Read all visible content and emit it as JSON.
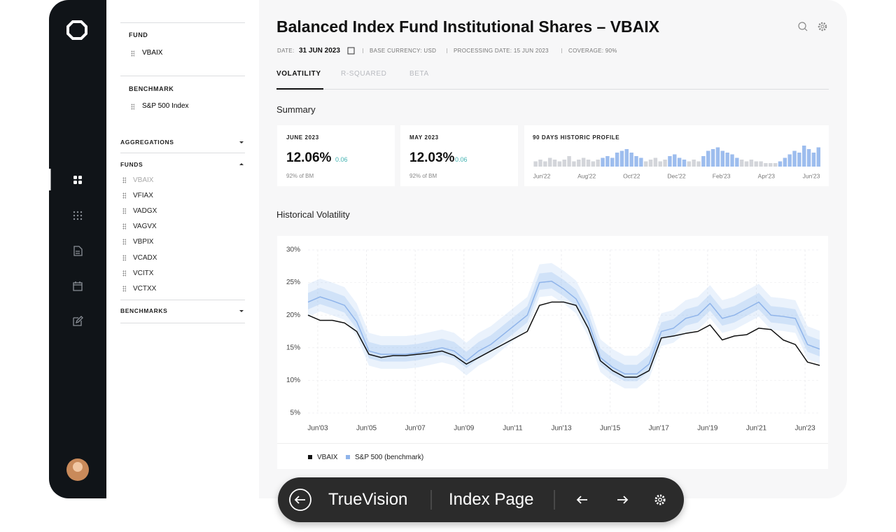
{
  "filters": {
    "fund": {
      "label": "FUND",
      "item": "VBAIX"
    },
    "benchmark": {
      "label": "BENCHMARK",
      "item": "S&P 500 Index"
    },
    "aggregations": "AGGREGATIONS",
    "funds": {
      "label": "FUNDS",
      "items": [
        "VBAIX",
        "VFIAX",
        "VADGX",
        "VAGVX",
        "VBPIX",
        "VCADX",
        "VCITX",
        "VCTXX"
      ]
    },
    "benchmarks": "BENCHMARKS"
  },
  "header": {
    "title": "Balanced Index Fund Institutional Shares – VBAIX",
    "date_label": "DATE:",
    "date": "31 JUN 2023",
    "meta": [
      "BASE CURRENCY: USD",
      "PROCESSING DATE: 15 JUN 2023",
      "COVERAGE: 90%"
    ],
    "tabs": [
      "VOLATILITY",
      "R-SQUARED",
      "BETA"
    ]
  },
  "summary": {
    "title": "Summary",
    "cards": [
      {
        "label": "JUNE 2023",
        "value": "12.06%",
        "change": "0.06",
        "note": "92% of BM"
      },
      {
        "label": "MAY 2023",
        "value": "12.03%",
        "change": "0.06",
        "note": "92% of BM"
      }
    ],
    "profile": {
      "title": "90 DAYS HISTORIC PROFILE",
      "type": "bar",
      "ylim": [
        0,
        12
      ],
      "xlabels": [
        "Jun'22",
        "Aug'22",
        "Oct'22",
        "Dec'22",
        "Feb'23",
        "Apr'23",
        "Jun'23"
      ],
      "series": [
        {
          "color": "#d3d5da",
          "values": [
            3,
            4,
            3,
            5,
            4,
            3,
            4,
            6,
            3,
            4,
            5,
            4,
            3,
            4,
            null,
            null,
            null,
            null,
            null,
            null,
            null,
            null,
            null,
            3,
            4,
            5,
            3,
            4,
            null,
            null,
            null,
            null,
            3,
            4,
            3,
            null,
            null,
            null,
            null,
            null,
            null,
            null,
            null,
            4,
            3,
            4,
            3,
            3,
            2,
            2,
            2,
            null,
            null,
            null,
            null,
            null,
            null,
            null,
            null,
            null
          ]
        },
        {
          "color": "#9dbdee",
          "values": [
            null,
            null,
            null,
            null,
            null,
            null,
            null,
            null,
            null,
            null,
            null,
            null,
            null,
            null,
            5,
            6,
            5,
            8,
            9,
            10,
            8,
            6,
            5,
            null,
            null,
            null,
            null,
            null,
            6,
            7,
            5,
            4,
            null,
            null,
            null,
            6,
            9,
            10,
            11,
            9,
            8,
            7,
            5,
            null,
            null,
            null,
            null,
            null,
            null,
            null,
            null,
            3,
            5,
            7,
            9,
            8,
            12,
            10,
            8,
            11
          ]
        }
      ]
    }
  },
  "historical": {
    "title": "Historical Volatility",
    "chart": {
      "type": "line",
      "xlim": [
        2002.6,
        2023.6
      ],
      "ylim": [
        5,
        30
      ],
      "yticks": [
        {
          "value": 5,
          "label": "5%"
        },
        {
          "value": 10,
          "label": "10%"
        },
        {
          "value": 15,
          "label": "15%"
        },
        {
          "value": 20,
          "label": "20%"
        },
        {
          "value": 25,
          "label": "25%"
        },
        {
          "value": 30,
          "label": "30%"
        }
      ],
      "xticks": [
        {
          "value": 2003,
          "label": "Jun'03"
        },
        {
          "value": 2005,
          "label": "Jun'05"
        },
        {
          "value": 2007,
          "label": "Jun'07"
        },
        {
          "value": 2009,
          "label": "Jun'09"
        },
        {
          "value": 2011,
          "label": "Jun'11"
        },
        {
          "value": 2013,
          "label": "Jun'13"
        },
        {
          "value": 2015,
          "label": "Jun'15"
        },
        {
          "value": 2017,
          "label": "Jun'17"
        },
        {
          "value": 2019,
          "label": "Jun'19"
        },
        {
          "value": 2021,
          "label": "Jun'21"
        },
        {
          "value": 2023,
          "label": "Jun'23"
        }
      ],
      "x": [
        2002.6,
        2003.1,
        2003.6,
        2004.1,
        2004.6,
        2005.1,
        2005.6,
        2006.1,
        2006.6,
        2007.1,
        2007.6,
        2008.1,
        2008.6,
        2009.1,
        2009.6,
        2010.1,
        2010.6,
        2011.1,
        2011.6,
        2012.1,
        2012.6,
        2013.1,
        2013.6,
        2014.1,
        2014.6,
        2015.1,
        2015.6,
        2016.1,
        2016.6,
        2017.1,
        2017.6,
        2018.1,
        2018.6,
        2019.1,
        2019.6,
        2020.1,
        2020.6,
        2021.1,
        2021.6,
        2022.1,
        2022.6,
        2023.1,
        2023.6
      ],
      "series": [
        {
          "name": "VBAIX",
          "color": "#111111",
          "values": [
            20,
            19.2,
            19.2,
            18.8,
            17.5,
            14,
            13.5,
            13.8,
            13.8,
            14,
            14.2,
            14.5,
            13.8,
            12.5,
            13.5,
            14.5,
            15.5,
            16.5,
            17.5,
            21.5,
            22,
            22,
            21.5,
            18,
            13,
            11.5,
            10.5,
            10.5,
            11.5,
            16.5,
            16.8,
            17.2,
            17.5,
            18.5,
            16.2,
            16.8,
            17,
            18,
            17.8,
            16.2,
            15.5,
            12.8,
            12.3
          ]
        },
        {
          "name": "S&P 500 (benchmark)",
          "color": "#8fb4ea",
          "values": [
            22,
            22.8,
            22.2,
            21.5,
            19,
            14.5,
            14,
            14,
            14,
            14.2,
            14.6,
            15,
            14.5,
            13,
            14.5,
            15.5,
            17,
            18.5,
            20,
            25,
            25.2,
            24,
            22.5,
            19,
            13.5,
            12,
            11,
            11,
            12.5,
            17.5,
            18,
            19.5,
            20,
            21.8,
            19.5,
            20,
            21,
            22,
            20,
            19.8,
            19.5,
            15.5,
            14.8
          ]
        }
      ]
    }
  },
  "toolbar": {
    "app": "TrueVision",
    "page": "Index Page"
  }
}
